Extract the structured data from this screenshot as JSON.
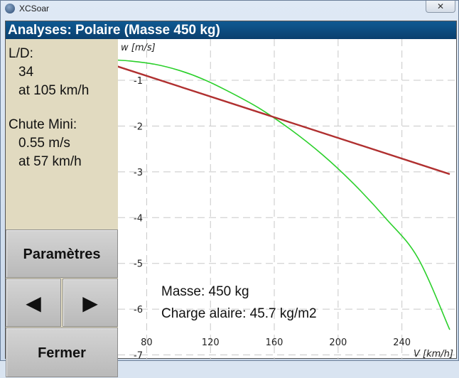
{
  "window": {
    "title": "XCSoar",
    "close_glyph": "✕"
  },
  "dialog": {
    "title": "Analyses: Polaire (Masse 450 kg)"
  },
  "info": {
    "ld_label": "L/D:",
    "ld_value": "34",
    "ld_speed": "at 105 km/h",
    "sink_label": "Chute Mini:",
    "sink_value": "0.55 m/s",
    "sink_speed": "at 57 km/h"
  },
  "buttons": {
    "params_label": "Paramètres",
    "prev_glyph": "◀",
    "next_glyph": "▶",
    "close_label": "Fermer"
  },
  "chart_data": {
    "type": "line",
    "ylabel": "w [m/s]",
    "xlabel": "V [km/h]",
    "xlim": [
      62,
      274
    ],
    "ylim": [
      -7.1,
      -0.1
    ],
    "xticks": [
      80,
      120,
      160,
      200,
      240
    ],
    "yticks": [
      -1,
      -2,
      -3,
      -4,
      -5,
      -6,
      -7
    ],
    "grid": true,
    "series": [
      {
        "color": "#2bd02b",
        "x": [
          57,
          70,
          85,
          100,
          115,
          130,
          150,
          170,
          190,
          210,
          230,
          250,
          270
        ],
        "y": [
          -0.55,
          -0.58,
          -0.65,
          -0.78,
          -0.97,
          -1.22,
          -1.6,
          -2.07,
          -2.62,
          -3.27,
          -4.02,
          -4.88,
          -6.45
        ]
      },
      {
        "color": "#b03030",
        "x": [
          0,
          270
        ],
        "y": [
          0,
          -3.05
        ]
      }
    ],
    "annotations": [
      "Masse: 450 kg",
      "Charge alaire: 45.7 kg/m2"
    ]
  }
}
